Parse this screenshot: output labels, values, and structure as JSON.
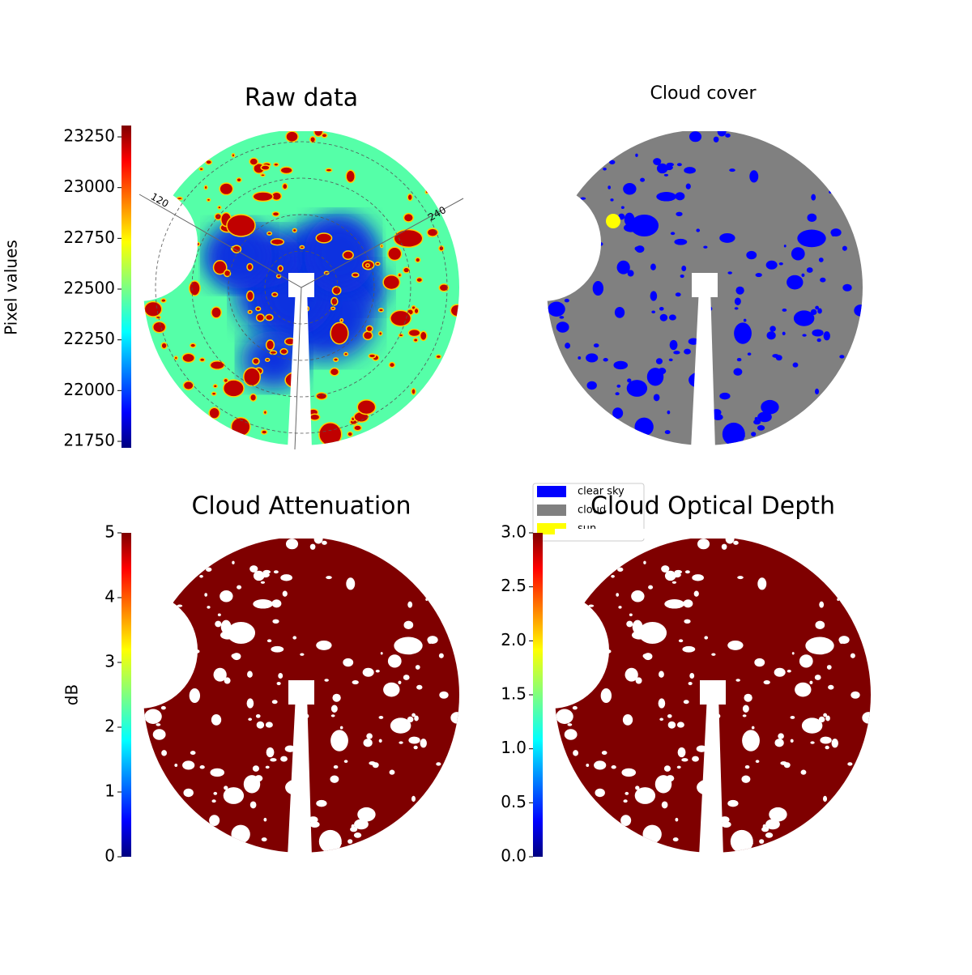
{
  "chart_data": [
    {
      "type": "image",
      "title": "Raw data",
      "colorbar_label": "Pixel values",
      "colormap": "jet",
      "clim": [
        21718,
        23306
      ],
      "cticks": [
        21750,
        22000,
        22250,
        22500,
        22750,
        23000,
        23250
      ],
      "annotations": [
        "120",
        "240"
      ]
    },
    {
      "type": "mask",
      "title": "Cloud cover",
      "legend": {
        "labels": [
          "clear sky",
          "cloud",
          "sun"
        ],
        "colors": [
          "#0000ff",
          "#808080",
          "#ffff00"
        ]
      }
    },
    {
      "type": "image",
      "title": "Cloud Attenuation",
      "colorbar_label": "dB",
      "colormap": "jet",
      "clim": [
        0,
        5
      ],
      "cticks": [
        0,
        1,
        2,
        3,
        4,
        5
      ]
    },
    {
      "type": "image",
      "title": "Cloud Optical Depth",
      "colormap": "jet",
      "clim": [
        0,
        3
      ],
      "cticks": [
        {
          "value": 0,
          "label": "0.0"
        },
        0.5,
        {
          "value": 1,
          "label": "1.0"
        },
        1.5,
        {
          "value": 2,
          "label": "2.0"
        },
        2.5,
        {
          "value": 3,
          "label": "3.0"
        }
      ]
    }
  ]
}
